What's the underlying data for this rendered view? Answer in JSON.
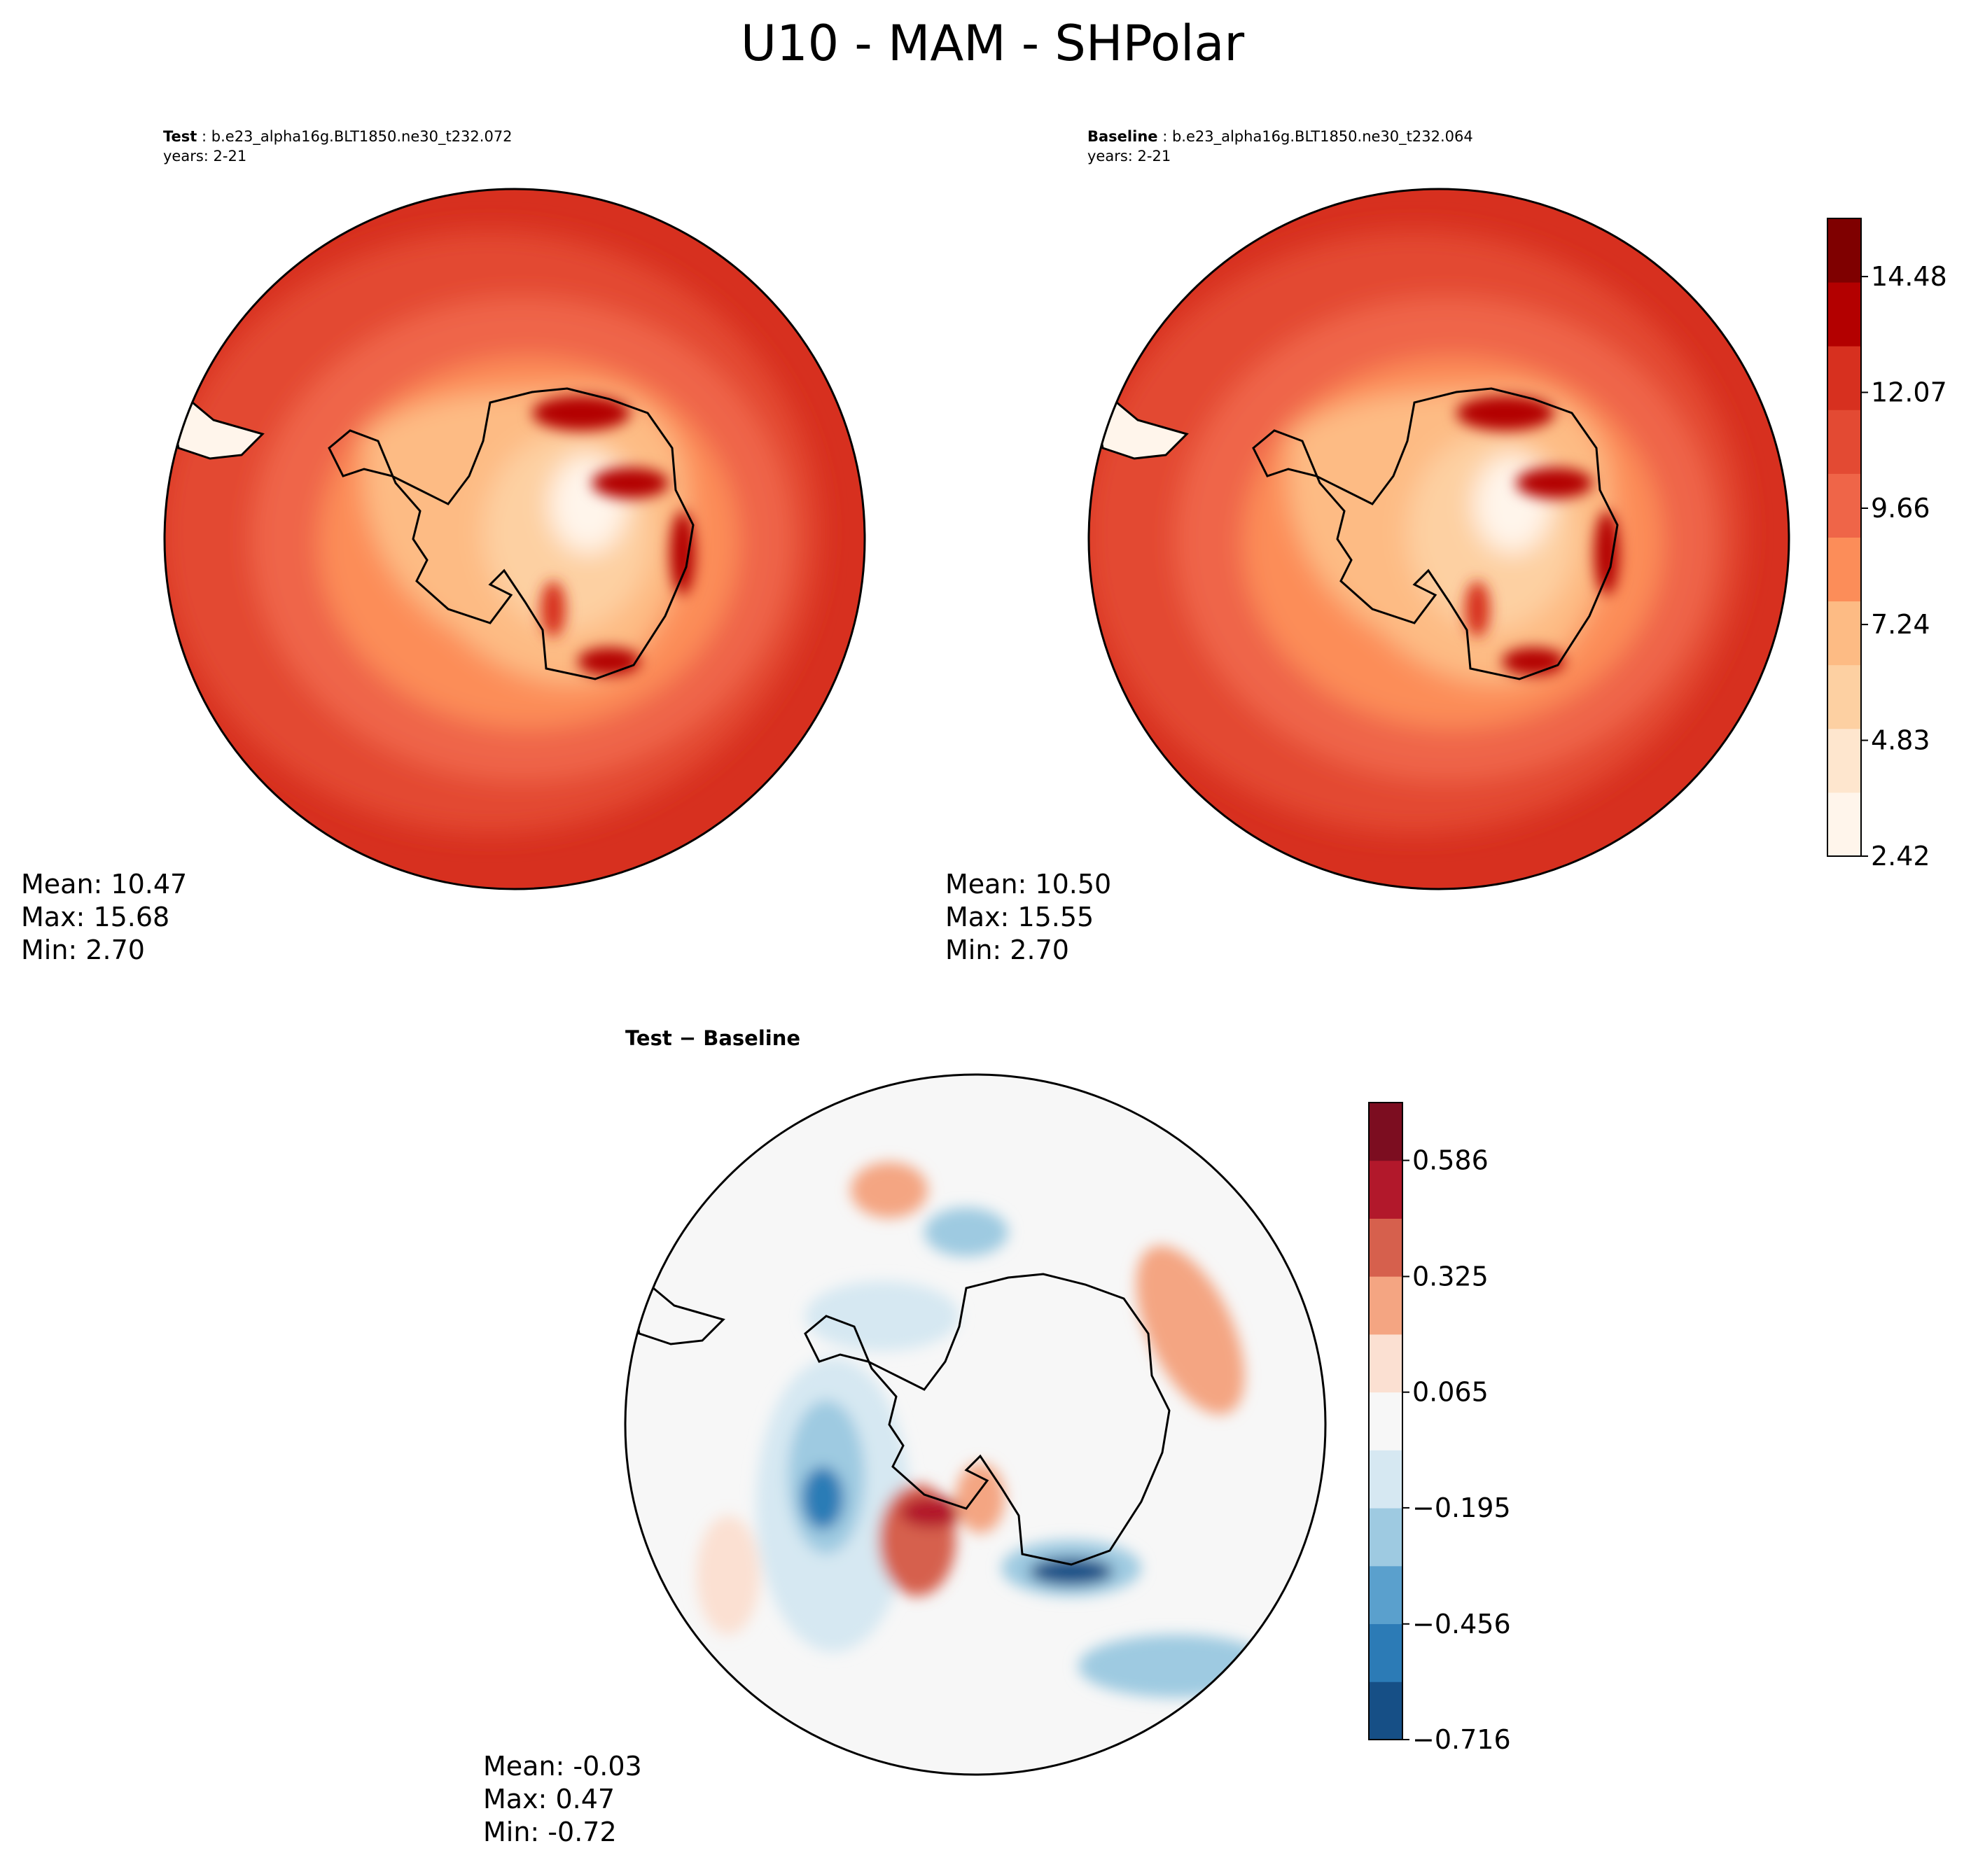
{
  "title": "U10 - MAM - SHPolar",
  "panels": {
    "test": {
      "label": "Test",
      "case": "b.e23_alpha16g.BLT1850.ne30_t232.072",
      "years": "years: 2-21",
      "stats": {
        "mean": "Mean: 10.47",
        "max": "Max: 15.68",
        "min": "Min:  2.70"
      }
    },
    "baseline": {
      "label": "Baseline",
      "case": "b.e23_alpha16g.BLT1850.ne30_t232.064",
      "years": "years: 2-21",
      "stats": {
        "mean": "Mean: 10.50",
        "max": "Max: 15.55",
        "min": "Min:  2.70"
      }
    },
    "diff": {
      "label": "Test − Baseline",
      "stats": {
        "mean": "Mean: -0.03",
        "max": "Max:  0.47",
        "min": "Min: -0.72"
      }
    }
  },
  "chart_data": [
    {
      "type": "contour-map",
      "projection": "south-polar-stereographic",
      "title": "Test : b.e23_alpha16g.BLT1850.ne30_t232.072",
      "field": "U10",
      "mean": 10.47,
      "max": 15.68,
      "min": 2.7
    },
    {
      "type": "contour-map",
      "projection": "south-polar-stereographic",
      "title": "Baseline : b.e23_alpha16g.BLT1850.ne30_t232.064",
      "field": "U10",
      "mean": 10.5,
      "max": 15.55,
      "min": 2.7
    },
    {
      "type": "contour-map",
      "projection": "south-polar-stereographic",
      "title": "Test − Baseline",
      "field": "U10 difference",
      "mean": -0.03,
      "max": 0.47,
      "min": -0.72
    }
  ],
  "colorbars": {
    "main": {
      "range": [
        2.42,
        15.69
      ],
      "ticks": [
        {
          "value": 2.42,
          "label": "2.42"
        },
        {
          "value": 4.83,
          "label": "4.83"
        },
        {
          "value": 7.24,
          "label": "7.24"
        },
        {
          "value": 9.66,
          "label": "9.66"
        },
        {
          "value": 12.07,
          "label": "12.07"
        },
        {
          "value": 14.48,
          "label": "14.48"
        }
      ],
      "colors": [
        "#fff5eb",
        "#fee6ce",
        "#fdd0a2",
        "#fdbb84",
        "#fc8d59",
        "#ef6548",
        "#e34a33",
        "#d7301f",
        "#b30000",
        "#7f0000"
      ]
    },
    "diff": {
      "range": [
        -0.716,
        0.716
      ],
      "ticks": [
        {
          "value": -0.716,
          "label": "−0.716"
        },
        {
          "value": -0.456,
          "label": "−0.456"
        },
        {
          "value": -0.195,
          "label": "−0.195"
        },
        {
          "value": 0.065,
          "label": "0.065"
        },
        {
          "value": 0.325,
          "label": "0.325"
        },
        {
          "value": 0.586,
          "label": "0.586"
        }
      ],
      "colors": [
        "#164f86",
        "#2c7bb6",
        "#5aa0cd",
        "#9ecae1",
        "#d6e8f2",
        "#f7f7f7",
        "#fbe0d2",
        "#f4a582",
        "#d6604d",
        "#b2182b",
        "#7c0d20"
      ]
    }
  }
}
